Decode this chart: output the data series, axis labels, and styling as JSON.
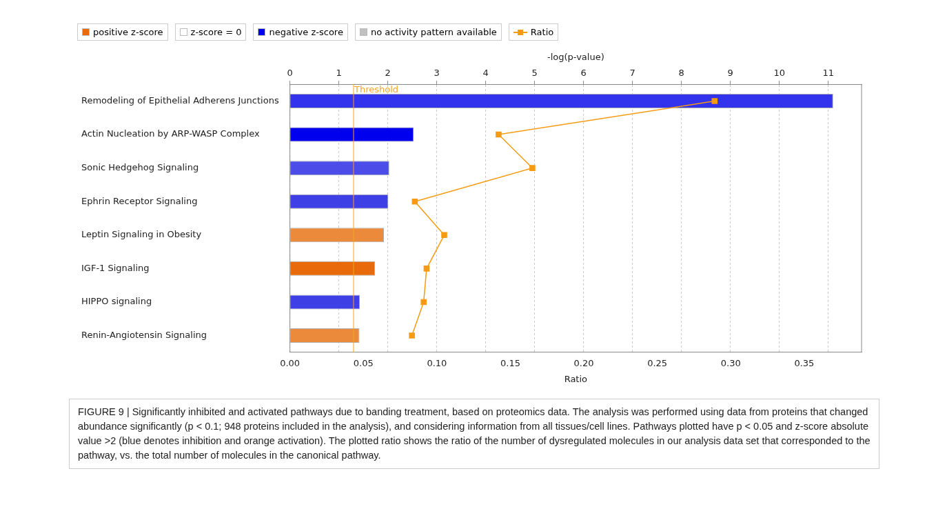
{
  "chart_data": {
    "type": "bar",
    "orientation": "horizontal",
    "categories": [
      "Remodeling of Epithelial Adherens Junctions",
      "Actin Nucleation by ARP-WASP Complex",
      "Sonic Hedgehog Signaling",
      "Ephrin Receptor Signaling",
      "Leptin Signaling in Obesity",
      "IGF-1 Signaling",
      "HIPPO signaling",
      "Renin-Angiotensin Signaling"
    ],
    "series": [
      {
        "name": "positive z-score",
        "color": "#e86a0a",
        "axis": "x2",
        "values": [
          null,
          null,
          null,
          null,
          1.92,
          1.74,
          null,
          1.42
        ],
        "colors": [
          null,
          null,
          null,
          null,
          "#eb8a3a",
          "#e86a0a",
          null,
          "#eb8a3a"
        ]
      },
      {
        "name": "z-score = 0",
        "color": "#ffffff",
        "axis": "x2",
        "values": [
          null,
          null,
          null,
          null,
          null,
          null,
          null,
          null
        ]
      },
      {
        "name": "negative z-score",
        "color": "#0000ee",
        "axis": "x2",
        "values": [
          11.1,
          2.53,
          2.03,
          2.01,
          null,
          null,
          1.43,
          null
        ],
        "colors": [
          "#3333ee",
          "#0000ee",
          "#4c4ce8",
          "#3f3fe6",
          null,
          null,
          "#3f3fe6",
          null
        ]
      },
      {
        "name": "no activity pattern available",
        "color": "#c0c0c0",
        "axis": "x2",
        "values": [
          null,
          null,
          null,
          null,
          null,
          null,
          null,
          null
        ]
      },
      {
        "name": "Ratio",
        "type": "line",
        "color": "#f59b12",
        "values": [
          0.289,
          0.142,
          0.165,
          0.085,
          0.105,
          0.093,
          0.091,
          0.083
        ]
      }
    ],
    "marker": "square",
    "xlabel": "Ratio",
    "xlim": [
      0,
      0.389
    ],
    "xticks": [
      {
        "value": 0,
        "label": "0.00"
      },
      {
        "value": 0.05,
        "label": "0.05"
      },
      {
        "value": 0.1,
        "label": "0.10"
      },
      {
        "value": 0.15,
        "label": "0.15"
      },
      {
        "value": 0.2,
        "label": "0.20"
      },
      {
        "value": 0.25,
        "label": "0.25"
      },
      {
        "value": 0.3,
        "label": "0.30"
      },
      {
        "value": 0.35,
        "label": "0.35"
      }
    ],
    "x2label": "-log(p-value)",
    "x2lim": [
      0,
      11.68
    ],
    "x2ticks": [
      0,
      1,
      2,
      3,
      4,
      5,
      6,
      7,
      8,
      9,
      10,
      11
    ],
    "ref_lines": [
      {
        "axis": "x2",
        "value": 1.3,
        "label": "Threshold",
        "color": "#f5a623"
      }
    ],
    "grid": "x",
    "legend": "top left",
    "annotations": [
      "FIGURE 9 | Significantly inhibited and activated pathways due to banding treatment, based on proteomics data. The analysis was performed using data from proteins that changed abundance significantly (p < 0.1; 948 proteins included in the analysis), and considering information from all tissues/cell lines. Pathways plotted have p < 0.05 and z-score absolute value >2 (blue denotes inhibition and orange activation). The plotted ratio shows the ratio of the number of dysregulated molecules in our analysis data set that corresponded to the pathway, vs. the total number of molecules in the canonical pathway."
    ]
  }
}
